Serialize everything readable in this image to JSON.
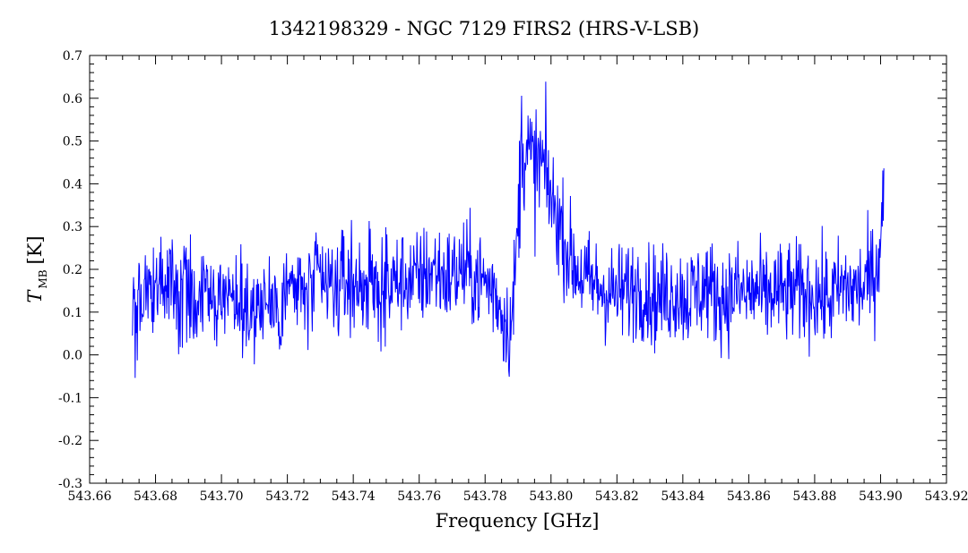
{
  "chart_data": {
    "type": "line",
    "title": "1342198329 - NGC 7129 FIRS2 (HRS-V-LSB)",
    "xlabel": "Frequency [GHz]",
    "ylabel_main": "T",
    "ylabel_sub": "MB",
    "ylabel_unit": "[K]",
    "xlim": [
      543.66,
      543.92
    ],
    "ylim": [
      -0.3,
      0.7
    ],
    "xticks": [
      "543.66",
      "543.68",
      "543.70",
      "543.72",
      "543.74",
      "543.76",
      "543.78",
      "543.80",
      "543.82",
      "543.84",
      "543.86",
      "543.88",
      "543.90",
      "543.92"
    ],
    "yticks": [
      "-0.3",
      "-0.2",
      "-0.1",
      "0.0",
      "0.1",
      "0.2",
      "0.3",
      "0.4",
      "0.5",
      "0.6",
      "0.7"
    ],
    "grid": false,
    "series": [
      {
        "color": "#0000ff",
        "x": [
          543.673,
          543.675,
          543.678,
          543.681,
          543.684,
          543.687,
          543.69,
          543.693,
          543.696,
          543.699,
          543.702,
          543.705,
          543.708,
          543.711,
          543.714,
          543.717,
          543.72,
          543.723,
          543.726,
          543.729,
          543.732,
          543.735,
          543.738,
          543.741,
          543.744,
          543.747,
          543.75,
          543.753,
          543.756,
          543.759,
          543.762,
          543.765,
          543.768,
          543.771,
          543.774,
          543.777,
          543.78,
          543.783,
          543.786,
          543.788,
          543.79,
          543.791,
          543.793,
          543.795,
          543.797,
          543.799,
          543.801,
          543.803,
          543.805,
          543.808,
          543.811,
          543.814,
          543.817,
          543.82,
          543.823,
          543.826,
          543.829,
          543.832,
          543.835,
          543.838,
          543.841,
          543.844,
          543.847,
          543.85,
          543.853,
          543.856,
          543.859,
          543.862,
          543.865,
          543.868,
          543.871,
          543.874,
          543.877,
          543.88,
          543.883,
          543.886,
          543.889,
          543.892,
          543.895,
          543.897,
          543.899,
          543.9,
          543.901
        ],
        "values": [
          0.1,
          0.12,
          0.15,
          0.14,
          0.17,
          0.15,
          0.16,
          0.13,
          0.15,
          0.12,
          0.14,
          0.13,
          0.11,
          0.12,
          0.13,
          0.1,
          0.16,
          0.15,
          0.14,
          0.17,
          0.16,
          0.15,
          0.18,
          0.16,
          0.17,
          0.15,
          0.16,
          0.17,
          0.18,
          0.17,
          0.19,
          0.2,
          0.18,
          0.19,
          0.2,
          0.18,
          0.17,
          0.15,
          0.08,
          0.06,
          0.3,
          0.5,
          0.47,
          0.43,
          0.45,
          0.4,
          0.34,
          0.3,
          0.24,
          0.2,
          0.17,
          0.16,
          0.15,
          0.14,
          0.15,
          0.16,
          0.15,
          0.13,
          0.14,
          0.15,
          0.13,
          0.15,
          0.16,
          0.14,
          0.13,
          0.15,
          0.14,
          0.15,
          0.13,
          0.15,
          0.14,
          0.15,
          0.14,
          0.15,
          0.13,
          0.14,
          0.16,
          0.15,
          0.16,
          0.18,
          0.2,
          0.3,
          0.38
        ]
      }
    ]
  }
}
